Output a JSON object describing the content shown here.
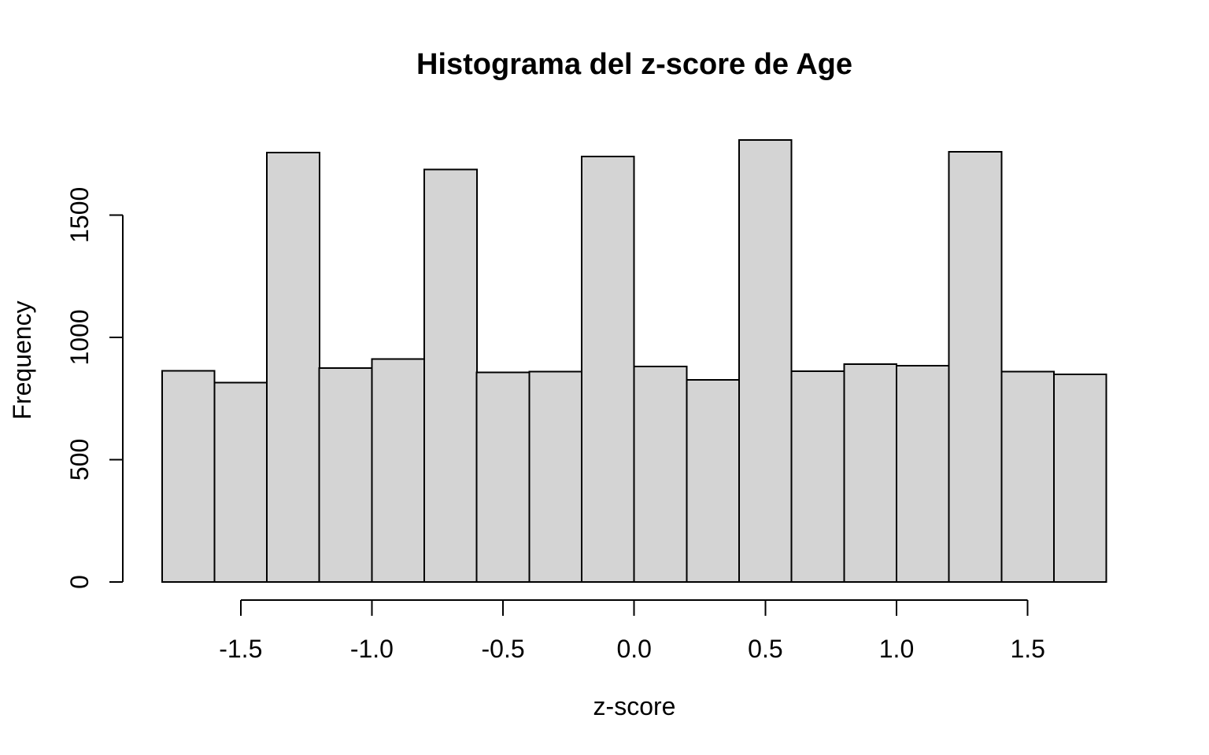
{
  "chart_data": {
    "type": "bar",
    "subtype": "histogram",
    "title": "Histograma del z-score de Age",
    "xlabel": "z-score",
    "ylabel": "Frequency",
    "bins": {
      "start": -1.8,
      "width": 0.2,
      "count": 18
    },
    "values": [
      863,
      815,
      1755,
      874,
      911,
      1686,
      856,
      859,
      1739,
      880,
      826,
      1806,
      861,
      891,
      884,
      1758,
      859,
      849
    ],
    "x_ticks": [
      {
        "value": -1.5,
        "label": "-1.5"
      },
      {
        "value": -1.0,
        "label": "-1.0"
      },
      {
        "value": -0.5,
        "label": "-0.5"
      },
      {
        "value": 0.0,
        "label": "0.0"
      },
      {
        "value": 0.5,
        "label": "0.5"
      },
      {
        "value": 1.0,
        "label": "1.0"
      },
      {
        "value": 1.5,
        "label": "1.5"
      }
    ],
    "y_ticks": [
      {
        "value": 0,
        "label": "0"
      },
      {
        "value": 500,
        "label": "500"
      },
      {
        "value": 1000,
        "label": "1000"
      },
      {
        "value": 1500,
        "label": "1500"
      }
    ],
    "xlim": [
      -1.8,
      1.8
    ],
    "ylim": [
      0,
      1810
    ],
    "grid": "off",
    "legend": "none",
    "colors": {
      "bar_fill": "#d4d4d4",
      "bar_stroke": "#000000",
      "axis": "#000000",
      "background": "#ffffff"
    }
  }
}
